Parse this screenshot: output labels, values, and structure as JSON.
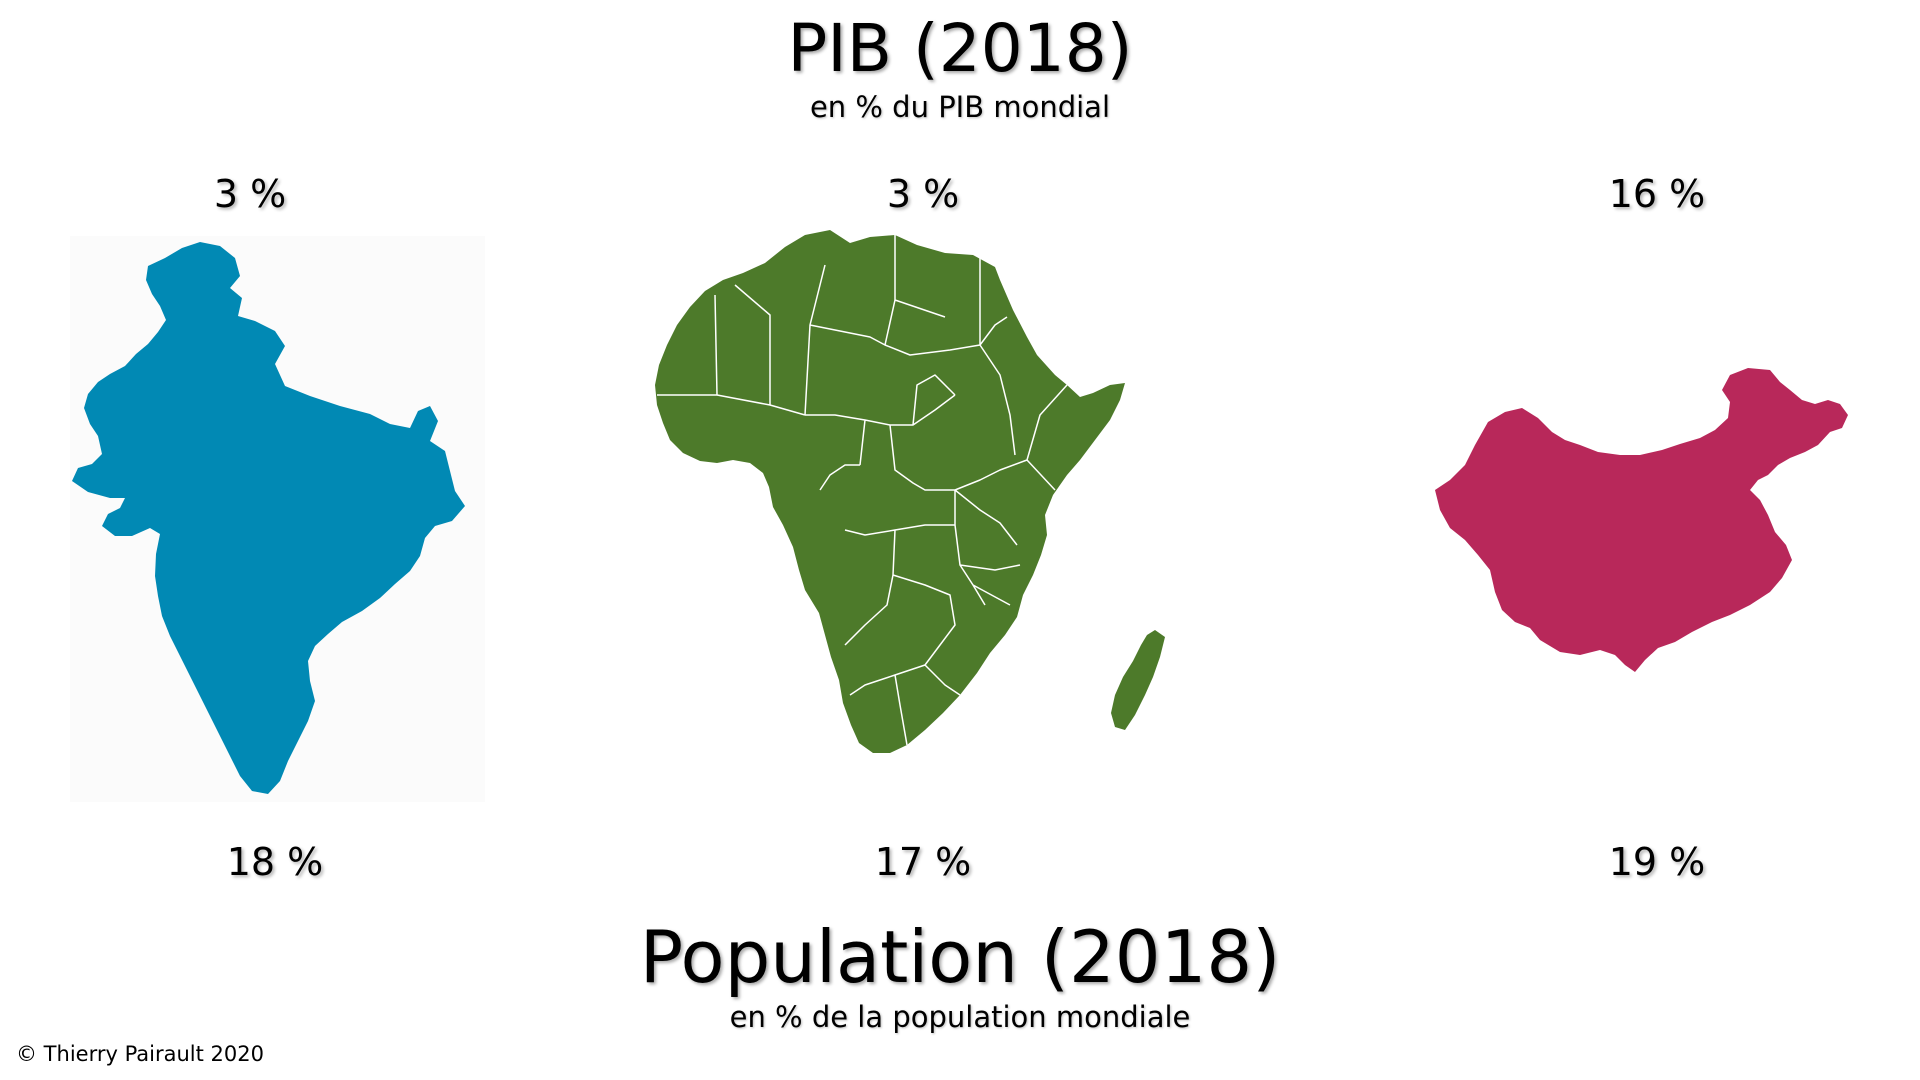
{
  "gdp": {
    "title": "PIB (2018)",
    "subtitle": "en % du PIB mondial"
  },
  "population": {
    "title": "Population (2018)",
    "subtitle": "en % de la population mondiale"
  },
  "regions": {
    "india": {
      "gdp": "3 %",
      "population": "18 %",
      "color": "#0189b4"
    },
    "africa": {
      "gdp": "3 %",
      "population": "17 %",
      "color": "#4d7a2a"
    },
    "china": {
      "gdp": "16 %",
      "population": "19 %",
      "color": "#b8285a"
    }
  },
  "copyright": "© Thierry Pairault 2020"
}
